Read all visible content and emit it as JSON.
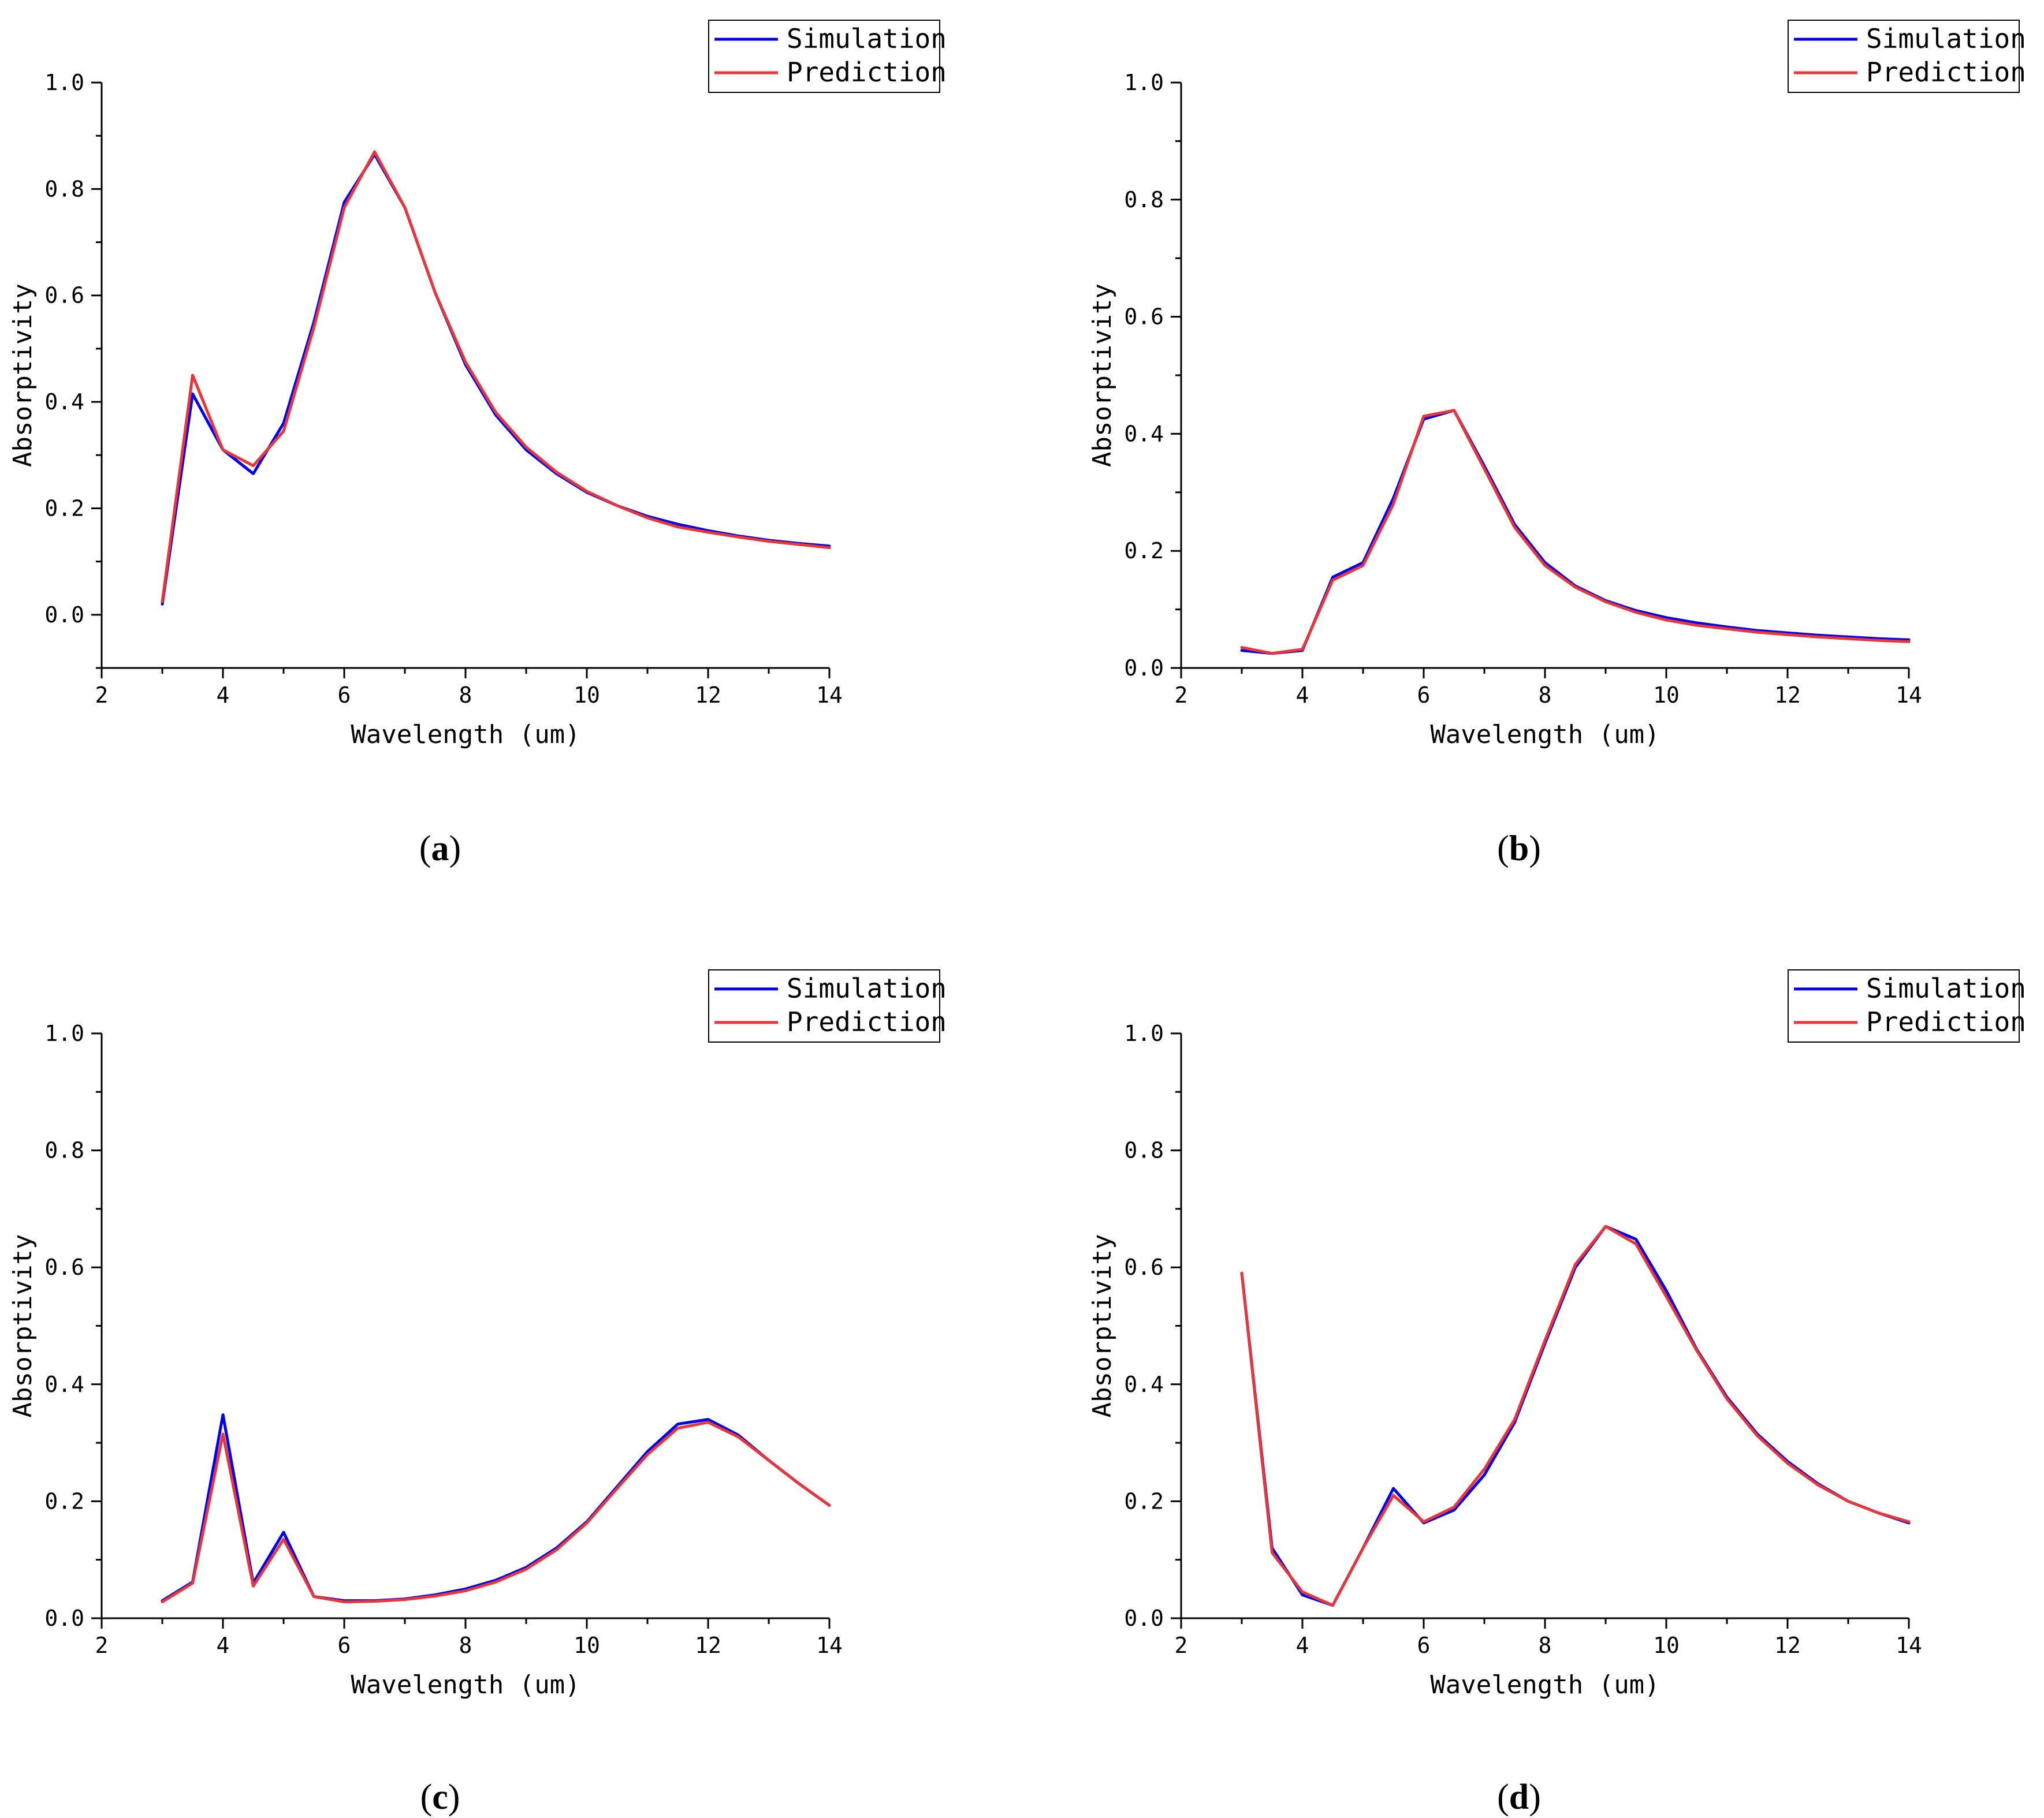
{
  "colors": {
    "simulation": "#0000ee",
    "prediction": "#e8373a"
  },
  "chart_data": [
    {
      "id": "a",
      "type": "line",
      "caption_label": "a",
      "xlabel": "Wavelength (um)",
      "ylabel": "Absorptivity",
      "xlim": [
        2,
        14
      ],
      "ylim": [
        -0.1,
        1.0
      ],
      "xticks": [
        "2",
        "4",
        "6",
        "8",
        "10",
        "12",
        "14"
      ],
      "yticks": [
        "0.0",
        "0.2",
        "0.4",
        "0.6",
        "0.8",
        "1.0"
      ],
      "legend": [
        "Simulation",
        "Prediction"
      ],
      "x": [
        3,
        3.5,
        4,
        4.5,
        5,
        5.5,
        6,
        6.5,
        7,
        7.5,
        8,
        8.5,
        9,
        9.5,
        10,
        10.5,
        11,
        11.5,
        12,
        12.5,
        13,
        13.5,
        14
      ],
      "series": [
        {
          "name": "Simulation",
          "values": [
            0.02,
            0.415,
            0.31,
            0.265,
            0.36,
            0.55,
            0.775,
            0.865,
            0.765,
            0.605,
            0.47,
            0.375,
            0.31,
            0.265,
            0.23,
            0.205,
            0.185,
            0.17,
            0.158,
            0.148,
            0.14,
            0.134,
            0.129
          ]
        },
        {
          "name": "Prediction",
          "values": [
            0.025,
            0.45,
            0.31,
            0.28,
            0.345,
            0.54,
            0.765,
            0.87,
            0.765,
            0.605,
            0.475,
            0.38,
            0.315,
            0.268,
            0.232,
            0.205,
            0.182,
            0.165,
            0.155,
            0.146,
            0.138,
            0.132,
            0.126
          ]
        }
      ]
    },
    {
      "id": "b",
      "type": "line",
      "caption_label": "b",
      "xlabel": "Wavelength (um)",
      "ylabel": "Absorptivity",
      "xlim": [
        2,
        14
      ],
      "ylim": [
        0.0,
        1.0
      ],
      "xticks": [
        "2",
        "4",
        "6",
        "8",
        "10",
        "12",
        "14"
      ],
      "yticks": [
        "0.0",
        "0.2",
        "0.4",
        "0.6",
        "0.8",
        "1.0"
      ],
      "legend": [
        "Simulation",
        "Prediction"
      ],
      "x": [
        3,
        3.5,
        4,
        4.5,
        5,
        5.5,
        6,
        6.5,
        7,
        7.5,
        8,
        8.5,
        9,
        9.5,
        10,
        10.5,
        11,
        11.5,
        12,
        12.5,
        13,
        13.5,
        14
      ],
      "series": [
        {
          "name": "Simulation",
          "values": [
            0.03,
            0.025,
            0.03,
            0.155,
            0.18,
            0.29,
            0.425,
            0.44,
            0.345,
            0.245,
            0.18,
            0.14,
            0.115,
            0.098,
            0.086,
            0.077,
            0.07,
            0.064,
            0.06,
            0.056,
            0.053,
            0.05,
            0.048
          ]
        },
        {
          "name": "Prediction",
          "values": [
            0.035,
            0.025,
            0.032,
            0.15,
            0.175,
            0.28,
            0.43,
            0.44,
            0.34,
            0.24,
            0.175,
            0.138,
            0.113,
            0.095,
            0.082,
            0.073,
            0.067,
            0.061,
            0.057,
            0.053,
            0.05,
            0.047,
            0.045
          ]
        }
      ]
    },
    {
      "id": "c",
      "type": "line",
      "caption_label": "c",
      "xlabel": "Wavelength (um)",
      "ylabel": "Absorptivity",
      "xlim": [
        2,
        14
      ],
      "ylim": [
        0.0,
        1.0
      ],
      "xticks": [
        "2",
        "4",
        "6",
        "8",
        "10",
        "12",
        "14"
      ],
      "yticks": [
        "0.0",
        "0.2",
        "0.4",
        "0.6",
        "0.8",
        "1.0"
      ],
      "legend": [
        "Simulation",
        "Prediction"
      ],
      "x": [
        3,
        3.5,
        4,
        4.5,
        5,
        5.5,
        6,
        6.5,
        7,
        7.5,
        8,
        8.5,
        9,
        9.5,
        10,
        10.5,
        11,
        11.5,
        12,
        12.5,
        13,
        13.5,
        14
      ],
      "series": [
        {
          "name": "Simulation",
          "values": [
            0.03,
            0.062,
            0.348,
            0.06,
            0.147,
            0.037,
            0.03,
            0.03,
            0.033,
            0.04,
            0.05,
            0.065,
            0.087,
            0.12,
            0.165,
            0.225,
            0.285,
            0.332,
            0.34,
            0.313,
            0.27,
            0.23,
            0.193
          ]
        },
        {
          "name": "Prediction",
          "values": [
            0.028,
            0.06,
            0.315,
            0.055,
            0.135,
            0.037,
            0.028,
            0.029,
            0.032,
            0.038,
            0.047,
            0.062,
            0.084,
            0.117,
            0.163,
            0.222,
            0.28,
            0.325,
            0.335,
            0.31,
            0.27,
            0.23,
            0.193
          ]
        }
      ]
    },
    {
      "id": "d",
      "type": "line",
      "caption_label": "d",
      "xlabel": "Wavelength (um)",
      "ylabel": "Absorptivity",
      "xlim": [
        2,
        14
      ],
      "ylim": [
        0.0,
        1.0
      ],
      "xticks": [
        "2",
        "4",
        "6",
        "8",
        "10",
        "12",
        "14"
      ],
      "yticks": [
        "0.0",
        "0.2",
        "0.4",
        "0.6",
        "0.8",
        "1.0"
      ],
      "legend": [
        "Simulation",
        "Prediction"
      ],
      "x": [
        3,
        3.5,
        4,
        4.5,
        5,
        5.5,
        6,
        6.5,
        7,
        7.5,
        8,
        8.5,
        9,
        9.5,
        10,
        10.5,
        11,
        11.5,
        12,
        12.5,
        13,
        13.5,
        14
      ],
      "series": [
        {
          "name": "Simulation",
          "values": [
            0.59,
            0.12,
            0.04,
            0.022,
            0.12,
            0.222,
            0.163,
            0.185,
            0.245,
            0.335,
            0.47,
            0.6,
            0.67,
            0.648,
            0.56,
            0.46,
            0.378,
            0.315,
            0.268,
            0.23,
            0.2,
            0.18,
            0.163
          ]
        },
        {
          "name": "Prediction",
          "values": [
            0.59,
            0.112,
            0.045,
            0.022,
            0.12,
            0.21,
            0.165,
            0.19,
            0.255,
            0.34,
            0.475,
            0.605,
            0.67,
            0.64,
            0.55,
            0.458,
            0.375,
            0.312,
            0.265,
            0.228,
            0.2,
            0.18,
            0.165
          ]
        }
      ]
    }
  ]
}
